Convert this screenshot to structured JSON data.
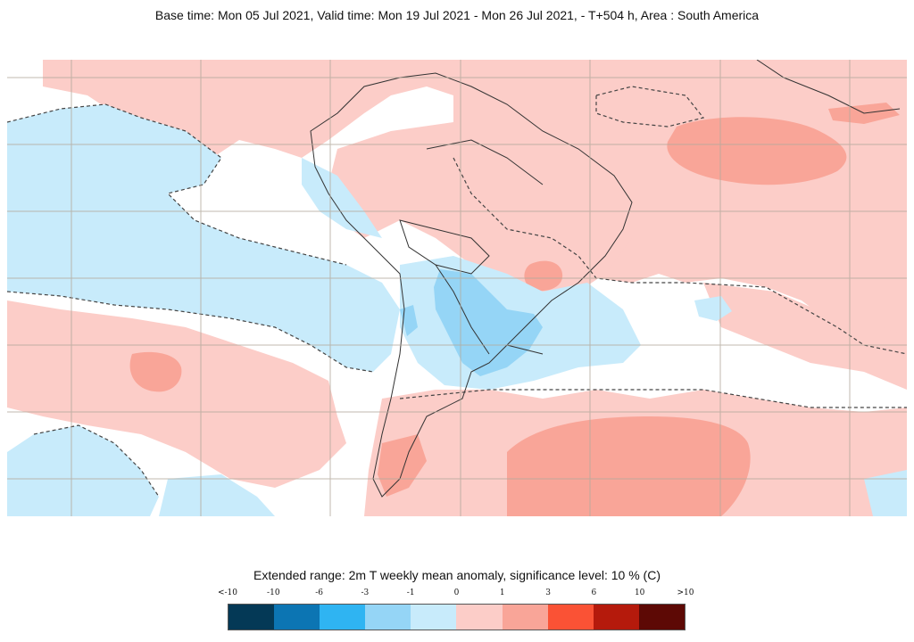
{
  "header": {
    "title": "Base time: Mon 05 Jul 2021, Valid time: Mon 19 Jul 2021 - Mon 26 Jul 2021, - T+504 h, Area : South America"
  },
  "legend": {
    "title": "Extended range: 2m T weekly mean anomaly, significance level: 10 % (C)",
    "ticks": [
      "<-10",
      "-10",
      "-6",
      "-3",
      "-1",
      "0",
      "1",
      "3",
      "6",
      "10",
      ">10"
    ],
    "colors": [
      "#043956",
      "#0c75b3",
      "#2fb4f2",
      "#95d5f6",
      "#c8ebfb",
      "#fccdc8",
      "#f9a598",
      "#fa5235",
      "#b51a0c",
      "#5d0905"
    ]
  },
  "map": {
    "area": "South America",
    "ocean_anomaly_color": "#fccdc8",
    "cold_anomaly_color": "#c8ebfb",
    "moderate_cold_color": "#95d5f6",
    "moderate_warm_color": "#f9a598",
    "land_border_color": "#333333",
    "gridline_color": "#b3aa9c"
  }
}
